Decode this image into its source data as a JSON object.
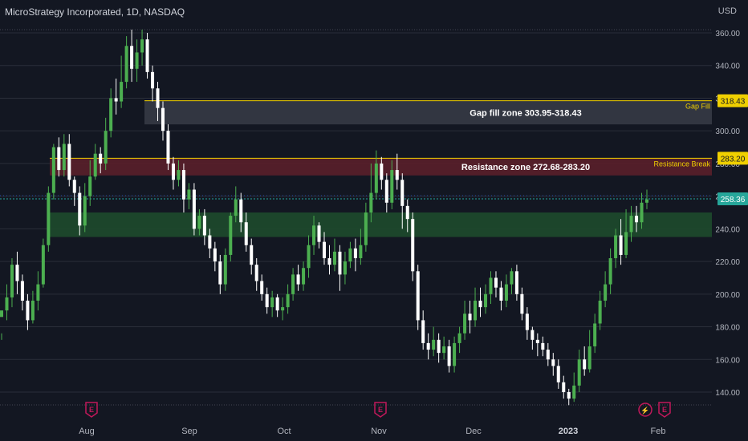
{
  "header": {
    "title": "MicroStrategy Incorporated, 1D, NASDAQ",
    "currency": "USD"
  },
  "colors": {
    "background": "#131722",
    "up": "#4caf50",
    "down": "#ffffff",
    "resistance_zone": "#5a1f2a",
    "support_zone": "#1e4a2c",
    "gap_zone": "#363a45",
    "line_yellow": "#f0d000",
    "current_price": "#26a69a",
    "earnings": "#c2185b"
  },
  "chart_data": {
    "type": "candlestick",
    "ylim": [
      130,
      365
    ],
    "y_ticks": [
      "360.00",
      "340.00",
      "320.00",
      "300.00",
      "280.00",
      "260.00",
      "240.00",
      "220.00",
      "200.00",
      "180.00",
      "160.00",
      "140.00"
    ],
    "x_labels": [
      "Aug",
      "Sep",
      "Oct",
      "Nov",
      "Dec",
      "2023",
      "Feb"
    ],
    "zones": [
      {
        "label": "Gap fill zone 303.95-318.43",
        "low": 303.95,
        "high": 318.43,
        "tag": "Gap Fill",
        "price_label": "318.43"
      },
      {
        "label": "Resistance zone 272.68-283.20",
        "low": 272.68,
        "high": 283.2,
        "tag": "Resistance Break",
        "price_label": "283.20"
      },
      {
        "label": "",
        "low": 235,
        "high": 250
      }
    ],
    "current_price": {
      "value": 258.36,
      "label": "258.36"
    },
    "events": [
      {
        "symbol": "E",
        "x_label": "Aug"
      },
      {
        "symbol": "E",
        "x_label": "Nov"
      },
      {
        "symbol": "⚡",
        "x_label": "Feb"
      },
      {
        "symbol": "E",
        "x_label": "Feb"
      }
    ],
    "candles": [
      [
        186,
        190,
        176,
        172
      ],
      [
        190,
        198,
        206,
        184
      ],
      [
        198,
        218,
        222,
        192
      ],
      [
        218,
        208,
        226,
        200
      ],
      [
        208,
        196,
        212,
        190
      ],
      [
        196,
        184,
        200,
        178
      ],
      [
        184,
        196,
        202,
        182
      ],
      [
        196,
        206,
        214,
        190
      ],
      [
        206,
        230,
        234,
        204
      ],
      [
        230,
        262,
        266,
        226
      ],
      [
        262,
        290,
        292,
        258
      ],
      [
        290,
        276,
        296,
        272
      ],
      [
        276,
        292,
        298,
        272
      ],
      [
        292,
        270,
        298,
        266
      ],
      [
        270,
        262,
        272,
        254
      ],
      [
        262,
        242,
        266,
        236
      ],
      [
        242,
        260,
        268,
        238
      ],
      [
        260,
        272,
        282,
        254
      ],
      [
        272,
        286,
        292,
        270
      ],
      [
        286,
        280,
        290,
        274
      ],
      [
        280,
        300,
        308,
        276
      ],
      [
        300,
        320,
        326,
        296
      ],
      [
        320,
        318,
        332,
        310
      ],
      [
        318,
        330,
        346,
        314
      ],
      [
        330,
        352,
        358,
        326
      ],
      [
        352,
        338,
        362,
        330
      ],
      [
        338,
        348,
        356,
        330
      ],
      [
        348,
        356,
        362,
        340
      ],
      [
        356,
        336,
        360,
        332
      ],
      [
        336,
        326,
        340,
        318
      ],
      [
        326,
        314,
        330,
        306
      ],
      [
        314,
        300,
        318,
        294
      ],
      [
        300,
        280,
        304,
        276
      ],
      [
        280,
        270,
        284,
        264
      ],
      [
        270,
        276,
        282,
        266
      ],
      [
        276,
        258,
        280,
        250
      ],
      [
        258,
        264,
        268,
        252
      ],
      [
        264,
        240,
        268,
        236
      ],
      [
        240,
        248,
        252,
        236
      ],
      [
        248,
        236,
        252,
        230
      ],
      [
        236,
        228,
        240,
        222
      ],
      [
        228,
        220,
        232,
        214
      ],
      [
        220,
        206,
        224,
        200
      ],
      [
        206,
        224,
        228,
        202
      ],
      [
        224,
        248,
        250,
        220
      ],
      [
        248,
        258,
        266,
        244
      ],
      [
        258,
        244,
        262,
        238
      ],
      [
        244,
        230,
        250,
        226
      ],
      [
        230,
        218,
        234,
        212
      ],
      [
        218,
        208,
        222,
        202
      ],
      [
        208,
        200,
        212,
        196
      ],
      [
        200,
        192,
        204,
        188
      ],
      [
        192,
        198,
        202,
        186
      ],
      [
        198,
        190,
        200,
        186
      ],
      [
        190,
        192,
        198,
        184
      ],
      [
        192,
        200,
        206,
        188
      ],
      [
        200,
        212,
        216,
        196
      ],
      [
        212,
        206,
        218,
        202
      ],
      [
        206,
        216,
        220,
        202
      ],
      [
        216,
        230,
        236,
        210
      ],
      [
        230,
        242,
        248,
        224
      ],
      [
        242,
        232,
        244,
        228
      ],
      [
        232,
        222,
        238,
        218
      ],
      [
        222,
        218,
        230,
        212
      ],
      [
        218,
        226,
        234,
        214
      ],
      [
        226,
        212,
        230,
        202
      ],
      [
        212,
        220,
        226,
        206
      ],
      [
        220,
        228,
        232,
        216
      ],
      [
        228,
        222,
        234,
        214
      ],
      [
        222,
        230,
        240,
        218
      ],
      [
        230,
        250,
        256,
        226
      ],
      [
        250,
        262,
        280,
        244
      ],
      [
        262,
        280,
        288,
        258
      ],
      [
        280,
        270,
        284,
        264
      ],
      [
        270,
        256,
        274,
        250
      ],
      [
        256,
        276,
        282,
        252
      ],
      [
        276,
        270,
        286,
        264
      ],
      [
        270,
        254,
        274,
        240
      ],
      [
        254,
        246,
        258,
        238
      ],
      [
        246,
        214,
        250,
        208
      ],
      [
        214,
        184,
        218,
        178
      ],
      [
        184,
        170,
        190,
        166
      ],
      [
        170,
        166,
        176,
        160
      ],
      [
        166,
        172,
        180,
        162
      ],
      [
        172,
        164,
        176,
        158
      ],
      [
        164,
        168,
        174,
        160
      ],
      [
        168,
        156,
        172,
        152
      ],
      [
        156,
        170,
        174,
        152
      ],
      [
        170,
        176,
        180,
        164
      ],
      [
        176,
        188,
        196,
        172
      ],
      [
        188,
        184,
        196,
        176
      ],
      [
        184,
        196,
        204,
        180
      ],
      [
        196,
        192,
        204,
        186
      ],
      [
        192,
        200,
        206,
        188
      ],
      [
        200,
        210,
        214,
        194
      ],
      [
        210,
        204,
        214,
        198
      ],
      [
        204,
        196,
        208,
        190
      ],
      [
        196,
        206,
        212,
        192
      ],
      [
        206,
        214,
        216,
        200
      ],
      [
        214,
        200,
        218,
        196
      ],
      [
        200,
        188,
        204,
        184
      ],
      [
        188,
        178,
        192,
        172
      ],
      [
        178,
        172,
        180,
        166
      ],
      [
        172,
        170,
        176,
        162
      ],
      [
        170,
        166,
        174,
        162
      ],
      [
        166,
        160,
        170,
        156
      ],
      [
        160,
        156,
        164,
        150
      ],
      [
        156,
        146,
        160,
        142
      ],
      [
        146,
        140,
        150,
        136
      ],
      [
        140,
        136,
        142,
        132
      ],
      [
        136,
        144,
        152,
        134
      ],
      [
        144,
        160,
        166,
        140
      ],
      [
        160,
        154,
        168,
        150
      ],
      [
        154,
        168,
        178,
        152
      ],
      [
        168,
        182,
        188,
        164
      ],
      [
        182,
        196,
        202,
        178
      ],
      [
        196,
        206,
        214,
        192
      ],
      [
        206,
        222,
        228,
        200
      ],
      [
        222,
        236,
        240,
        216
      ],
      [
        236,
        224,
        246,
        218
      ],
      [
        224,
        238,
        252,
        222
      ],
      [
        238,
        248,
        254,
        232
      ],
      [
        248,
        244,
        254,
        238
      ],
      [
        244,
        256,
        262,
        240
      ],
      [
        256,
        258,
        264,
        252
      ]
    ]
  }
}
